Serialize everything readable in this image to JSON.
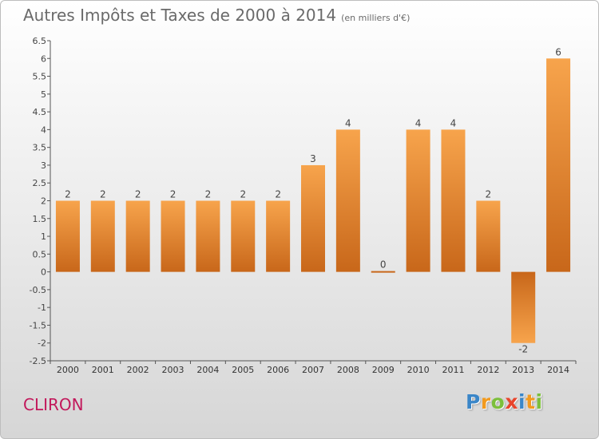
{
  "title": "Autres Impôts et Taxes de 2000 à 2014",
  "unit": "(en milliers d'€)",
  "commune": "CLIRON",
  "logo": {
    "letters": [
      "P",
      "r",
      "o",
      "x",
      "i",
      "t",
      "i"
    ],
    "colors": [
      "#3a86c8",
      "#f29a1e",
      "#7cbf3c",
      "#e8452c",
      "#3a86c8",
      "#f29a1e",
      "#7cbf3c"
    ]
  },
  "colors": {
    "bar_light": "#f7a44c",
    "bar_dark": "#c8671a",
    "title": "#6a6a6a",
    "commune": "#c2185b"
  },
  "chart_data": {
    "type": "bar",
    "title": "Autres Impôts et Taxes de 2000 à 2014",
    "ylabel": "",
    "xlabel": "",
    "categories": [
      "2000",
      "2001",
      "2002",
      "2003",
      "2004",
      "2005",
      "2006",
      "2007",
      "2008",
      "2009",
      "2010",
      "2011",
      "2012",
      "2013",
      "2014"
    ],
    "values": [
      2,
      2,
      2,
      2,
      2,
      2,
      2,
      3,
      4,
      0,
      4,
      4,
      2,
      -2,
      6
    ],
    "data_labels": [
      "2",
      "2",
      "2",
      "2",
      "2",
      "2",
      "2",
      "3",
      "4",
      "0",
      "4",
      "4",
      "2",
      "-2",
      "6"
    ],
    "ylim": [
      -2.5,
      6.5
    ],
    "yticks": [
      "-2.5",
      "-2",
      "-1.5",
      "-1",
      "-0.5",
      "0",
      "0.5",
      "1",
      "1.5",
      "2",
      "2.5",
      "3",
      "3.5",
      "4",
      "4.5",
      "5",
      "5.5",
      "6",
      "6.5"
    ],
    "ytick_values": [
      -2.5,
      -2,
      -1.5,
      -1,
      -0.5,
      0,
      0.5,
      1,
      1.5,
      2,
      2.5,
      3,
      3.5,
      4,
      4.5,
      5,
      5.5,
      6,
      6.5
    ],
    "grid": false,
    "legend": "none"
  }
}
